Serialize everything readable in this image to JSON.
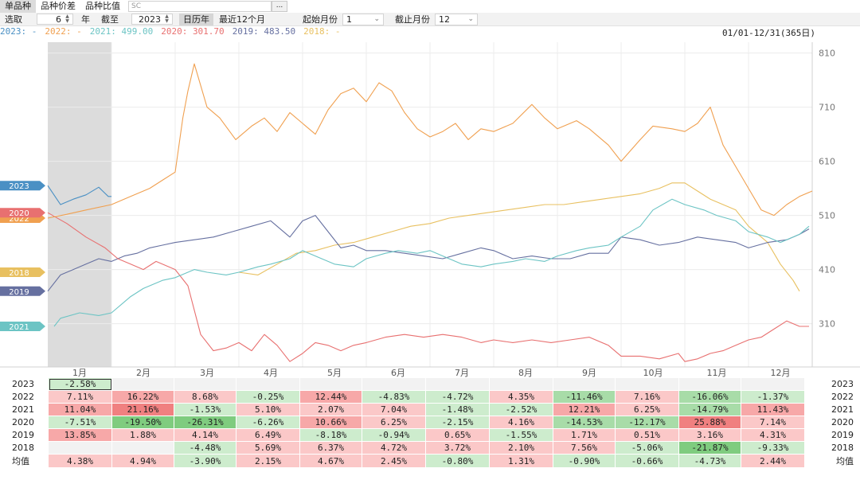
{
  "tabs": [
    "单品种",
    "品种价差",
    "品种比值"
  ],
  "code_input": {
    "value": "SC"
  },
  "dots_button": "...",
  "toolbar": {
    "select_label": "选取",
    "years_value": "6",
    "years_unit": "年",
    "until_label": "截至",
    "until_value": "2023",
    "calendar_year": "日历年",
    "last12": "最近12个月",
    "start_month_label": "起始月份",
    "start_month_value": "1",
    "end_month_label": "截止月份",
    "end_month_value": "12"
  },
  "legend": [
    {
      "year": "2023",
      "text": "2023: -",
      "color": "#4a90c4"
    },
    {
      "year": "2022",
      "text": "2022: -",
      "color": "#f0a050"
    },
    {
      "year": "2021",
      "text": "2021: 499.00",
      "color": "#6cc4c4"
    },
    {
      "year": "2020",
      "text": "2020: 301.70",
      "color": "#e87070"
    },
    {
      "year": "2019",
      "text": "2019: 483.50",
      "color": "#6670a0"
    },
    {
      "year": "2018",
      "text": "2018: -",
      "color": "#e8c060"
    }
  ],
  "date_range": "01/01-12/31(365日)",
  "chart_data": {
    "type": "line",
    "x_categories": [
      "1月",
      "2月",
      "3月",
      "4月",
      "5月",
      "6月",
      "7月",
      "8月",
      "9月",
      "10月",
      "11月",
      "12月"
    ],
    "y_ticks": [
      810,
      710,
      610,
      510,
      410,
      310
    ],
    "ylim": [
      230,
      830
    ],
    "highlight_month": "1月",
    "series": [
      {
        "name": "2023",
        "color": "#4a90c4",
        "x": [
          0.0,
          0.2,
          0.4,
          0.6,
          0.8,
          0.95,
          1.0
        ],
        "y": [
          565,
          530,
          540,
          548,
          562,
          545,
          545
        ]
      },
      {
        "name": "2022",
        "color": "#f0a050",
        "x": [
          0.0,
          0.3,
          0.6,
          1.0,
          1.3,
          1.6,
          1.8,
          2.0,
          2.12,
          2.2,
          2.3,
          2.5,
          2.7,
          2.95,
          3.2,
          3.4,
          3.6,
          3.8,
          4.0,
          4.2,
          4.4,
          4.6,
          4.8,
          5.0,
          5.2,
          5.4,
          5.6,
          5.8,
          6.0,
          6.2,
          6.4,
          6.6,
          6.8,
          7.0,
          7.3,
          7.6,
          7.8,
          8.0,
          8.3,
          8.5,
          8.8,
          9.0,
          9.3,
          9.5,
          9.8,
          10.0,
          10.2,
          10.4,
          10.6,
          10.8,
          10.9,
          11.0,
          11.2,
          11.4,
          11.6,
          11.8,
          12.0
        ],
        "y": [
          505,
          512,
          520,
          530,
          545,
          560,
          575,
          590,
          690,
          740,
          790,
          710,
          690,
          650,
          675,
          690,
          665,
          700,
          680,
          660,
          705,
          735,
          745,
          720,
          755,
          740,
          700,
          670,
          655,
          665,
          680,
          650,
          670,
          665,
          680,
          715,
          690,
          670,
          685,
          670,
          640,
          610,
          650,
          675,
          670,
          665,
          680,
          710,
          640,
          600,
          580,
          560,
          520,
          510,
          530,
          545,
          555
        ]
      },
      {
        "name": "2021",
        "color": "#6cc4c4",
        "x": [
          0.1,
          0.2,
          0.5,
          0.8,
          1.0,
          1.3,
          1.5,
          1.8,
          2.0,
          2.3,
          2.5,
          2.8,
          3.0,
          3.3,
          3.5,
          3.8,
          4.0,
          4.3,
          4.5,
          4.8,
          5.0,
          5.3,
          5.5,
          5.8,
          6.0,
          6.3,
          6.5,
          6.8,
          7.0,
          7.3,
          7.5,
          7.8,
          8.0,
          8.3,
          8.5,
          8.8,
          9.0,
          9.3,
          9.5,
          9.8,
          10.0,
          10.3,
          10.5,
          10.8,
          11.0,
          11.3,
          11.5,
          11.8,
          11.95
        ],
        "y": [
          305,
          320,
          330,
          325,
          330,
          360,
          375,
          390,
          395,
          410,
          405,
          400,
          405,
          415,
          420,
          430,
          445,
          430,
          420,
          415,
          430,
          440,
          445,
          440,
          445,
          430,
          420,
          415,
          420,
          425,
          430,
          425,
          435,
          445,
          450,
          455,
          470,
          490,
          520,
          540,
          530,
          520,
          510,
          500,
          480,
          470,
          460,
          475,
          490
        ]
      },
      {
        "name": "2020",
        "color": "#e87070",
        "x": [
          0.0,
          0.3,
          0.6,
          0.9,
          1.1,
          1.3,
          1.5,
          1.7,
          2.0,
          2.2,
          2.4,
          2.6,
          2.8,
          3.0,
          3.2,
          3.4,
          3.6,
          3.8,
          4.0,
          4.2,
          4.4,
          4.6,
          4.8,
          5.0,
          5.3,
          5.6,
          5.9,
          6.2,
          6.5,
          6.8,
          7.0,
          7.3,
          7.6,
          7.9,
          8.2,
          8.5,
          8.8,
          9.0,
          9.3,
          9.6,
          9.9,
          10.0,
          10.2,
          10.4,
          10.6,
          10.8,
          11.0,
          11.2,
          11.4,
          11.6,
          11.8,
          11.95
        ],
        "y": [
          515,
          495,
          470,
          450,
          430,
          420,
          410,
          425,
          410,
          380,
          290,
          260,
          265,
          275,
          260,
          290,
          270,
          240,
          255,
          275,
          270,
          260,
          270,
          275,
          285,
          290,
          285,
          290,
          285,
          275,
          280,
          275,
          280,
          275,
          280,
          285,
          270,
          250,
          250,
          245,
          255,
          240,
          245,
          255,
          260,
          270,
          280,
          285,
          300,
          315,
          305,
          305
        ]
      },
      {
        "name": "2019",
        "color": "#6670a0",
        "x": [
          0.0,
          0.2,
          0.4,
          0.6,
          0.8,
          1.0,
          1.2,
          1.4,
          1.6,
          1.8,
          2.0,
          2.3,
          2.6,
          2.9,
          3.2,
          3.5,
          3.8,
          4.0,
          4.2,
          4.4,
          4.6,
          4.8,
          5.0,
          5.3,
          5.6,
          5.9,
          6.2,
          6.5,
          6.8,
          7.0,
          7.3,
          7.6,
          7.9,
          8.2,
          8.5,
          8.8,
          9.0,
          9.3,
          9.6,
          9.9,
          10.2,
          10.5,
          10.8,
          11.0,
          11.3,
          11.6,
          11.8,
          11.95
        ],
        "y": [
          370,
          400,
          410,
          420,
          430,
          425,
          435,
          440,
          450,
          455,
          460,
          465,
          470,
          480,
          490,
          500,
          470,
          500,
          510,
          480,
          450,
          455,
          445,
          445,
          440,
          435,
          430,
          440,
          450,
          445,
          430,
          435,
          430,
          430,
          440,
          440,
          470,
          465,
          455,
          460,
          470,
          465,
          460,
          450,
          460,
          465,
          475,
          485
        ]
      },
      {
        "name": "2018",
        "color": "#e8c060",
        "x": [
          3.0,
          3.3,
          3.6,
          3.9,
          4.2,
          4.5,
          4.8,
          5.1,
          5.4,
          5.7,
          6.0,
          6.3,
          6.6,
          6.9,
          7.2,
          7.5,
          7.8,
          8.1,
          8.4,
          8.7,
          9.0,
          9.3,
          9.6,
          9.8,
          10.0,
          10.2,
          10.4,
          10.6,
          10.8,
          11.0,
          11.3,
          11.5,
          11.7,
          11.8
        ],
        "y": [
          405,
          400,
          420,
          440,
          445,
          455,
          460,
          470,
          480,
          490,
          495,
          505,
          510,
          515,
          520,
          525,
          530,
          530,
          535,
          540,
          545,
          550,
          560,
          570,
          570,
          555,
          540,
          530,
          520,
          490,
          460,
          420,
          390,
          370
        ]
      }
    ]
  },
  "table": {
    "rows": [
      {
        "year": "2023",
        "values": [
          "-2.58%",
          "",
          "",
          "",
          "",
          "",
          "",
          "",
          "",
          "",
          "",
          ""
        ]
      },
      {
        "year": "2022",
        "values": [
          "7.11%",
          "16.22%",
          "8.68%",
          "-0.25%",
          "12.44%",
          "-4.83%",
          "-4.72%",
          "4.35%",
          "-11.46%",
          "7.16%",
          "-16.06%",
          "-1.37%"
        ]
      },
      {
        "year": "2021",
        "values": [
          "11.04%",
          "21.16%",
          "-1.53%",
          "5.10%",
          "2.07%",
          "7.04%",
          "-1.48%",
          "-2.52%",
          "12.21%",
          "6.25%",
          "-14.79%",
          "11.43%"
        ]
      },
      {
        "year": "2020",
        "values": [
          "-7.51%",
          "-19.50%",
          "-26.31%",
          "-6.26%",
          "10.66%",
          "6.25%",
          "-2.15%",
          "4.16%",
          "-14.53%",
          "-12.17%",
          "25.88%",
          "7.14%"
        ]
      },
      {
        "year": "2019",
        "values": [
          "13.85%",
          "1.88%",
          "4.14%",
          "6.49%",
          "-8.18%",
          "-0.94%",
          "0.65%",
          "-1.55%",
          "1.71%",
          "0.51%",
          "3.16%",
          "4.31%"
        ]
      },
      {
        "year": "2018",
        "values": [
          "",
          "",
          "-4.48%",
          "5.69%",
          "6.37%",
          "4.72%",
          "3.72%",
          "2.10%",
          "7.56%",
          "-5.06%",
          "-21.87%",
          "-9.33%"
        ]
      },
      {
        "year": "均值",
        "values": [
          "4.38%",
          "4.94%",
          "-3.90%",
          "2.15%",
          "4.67%",
          "2.45%",
          "-0.80%",
          "1.31%",
          "-0.90%",
          "-0.66%",
          "-4.73%",
          "2.44%"
        ]
      }
    ]
  }
}
